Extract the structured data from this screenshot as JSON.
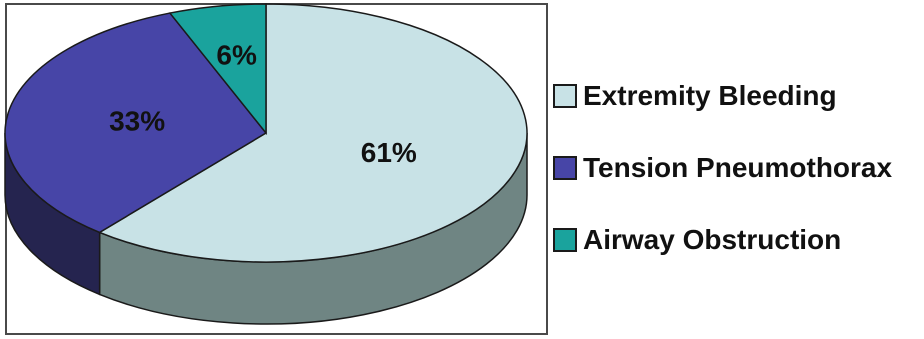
{
  "chart_data": {
    "type": "pie",
    "style": "3d-exploded-depth",
    "legend_position": "right",
    "slices": [
      {
        "name": "Extremity Bleeding",
        "value": 61,
        "label": "61%",
        "color": "#c8e2e6",
        "side_color": "#6f8583"
      },
      {
        "name": "Tension Pneumothorax",
        "value": 33,
        "label": "33%",
        "color": "#4745a7",
        "side_color": "#25244f"
      },
      {
        "name": "Airway Obstruction",
        "value": 6,
        "label": "6%",
        "color": "#1aa39d",
        "side_color": "#0f5e5a"
      }
    ]
  }
}
